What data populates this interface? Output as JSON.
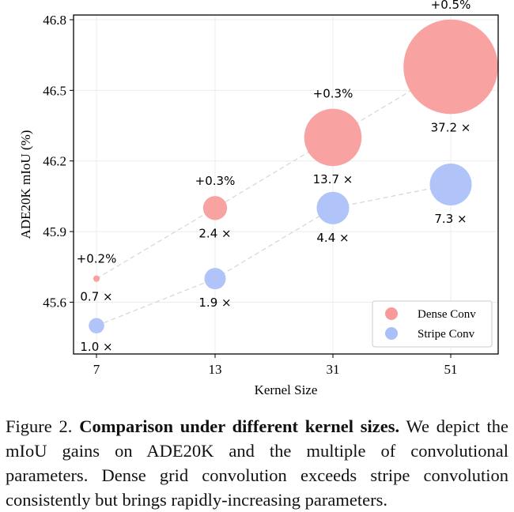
{
  "chart_data": {
    "type": "scatter",
    "xlabel": "Kernel Size",
    "ylabel": "ADE20K mIoU (%)",
    "categories": [
      "7",
      "13",
      "31",
      "51"
    ],
    "yticks": [
      "45.6",
      "45.9",
      "46.2",
      "46.5",
      "46.8"
    ],
    "ylim": [
      45.38,
      46.82
    ],
    "grid": true,
    "legend_position": "lower-right",
    "series": [
      {
        "name": "Dense Conv",
        "color": "#f89a9a",
        "values": [
          45.7,
          46.0,
          46.3,
          46.6
        ],
        "param_multiples": [
          0.7,
          2.4,
          13.7,
          37.2
        ],
        "size_labels": [
          "0.7 ×",
          "2.4 ×",
          "13.7 ×",
          "37.2 ×"
        ],
        "gain_labels": [
          "+0.2%",
          "+0.3%",
          "+0.3%",
          "+0.5%"
        ]
      },
      {
        "name": "Stripe Conv",
        "color": "#a9bff8",
        "values": [
          45.5,
          45.7,
          46.0,
          46.1
        ],
        "param_multiples": [
          1.0,
          1.9,
          4.4,
          7.3
        ],
        "size_labels": [
          "1.0 ×",
          "1.9 ×",
          "4.4 ×",
          "7.3 ×"
        ]
      }
    ]
  },
  "caption": {
    "prefix": "Figure 2.",
    "bold": "Comparison under different kernel sizes.",
    "rest": "We depict the mIoU gains on ADE20K and the multiple of convolutional parameters. Dense grid convolution exceeds stripe convolution consistently but brings rapidly-increasing parameters."
  }
}
